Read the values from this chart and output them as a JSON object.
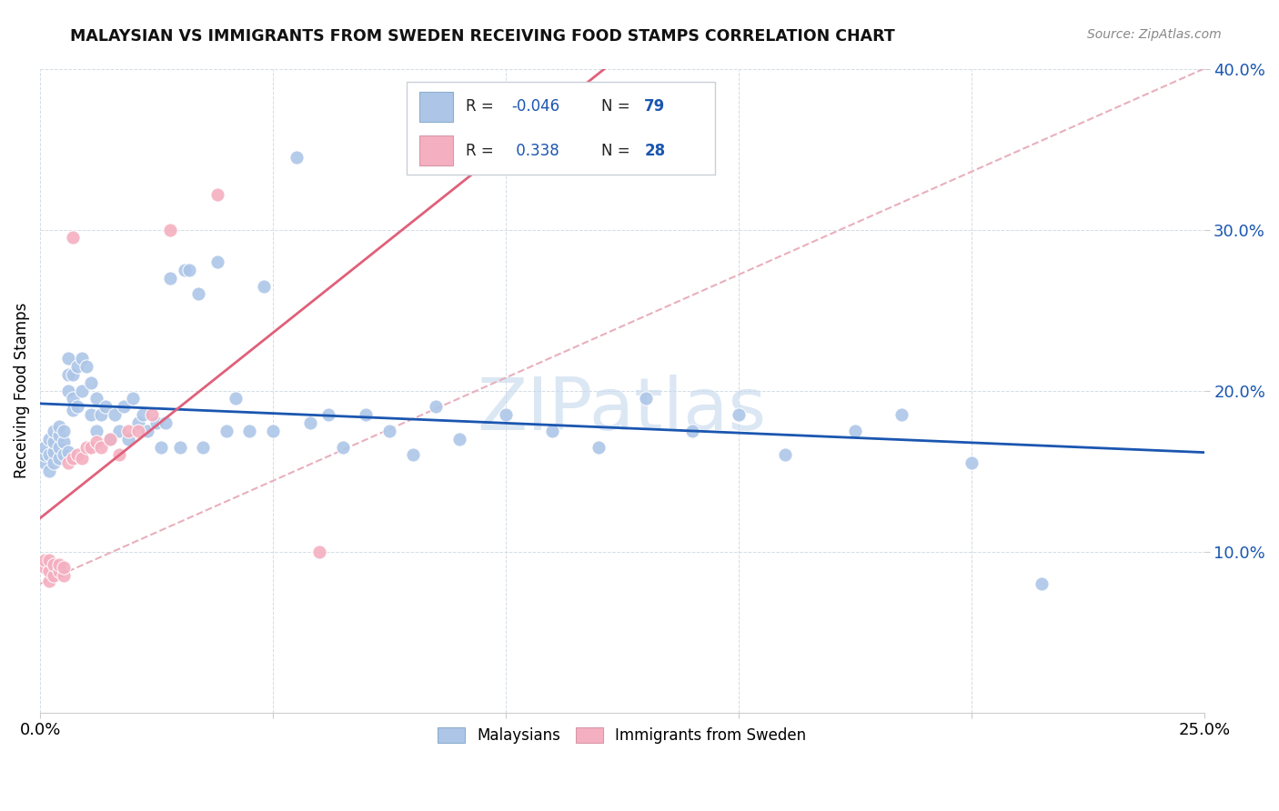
{
  "title": "MALAYSIAN VS IMMIGRANTS FROM SWEDEN RECEIVING FOOD STAMPS CORRELATION CHART",
  "source": "Source: ZipAtlas.com",
  "ylabel": "Receiving Food Stamps",
  "ytick_vals": [
    0.1,
    0.2,
    0.3,
    0.4
  ],
  "ytick_labels": [
    "10.0%",
    "20.0%",
    "30.0%",
    "40.0%"
  ],
  "xtick_vals": [
    0.0,
    0.25
  ],
  "xtick_labels": [
    "0.0%",
    "25.0%"
  ],
  "legend_labels": [
    "Malaysians",
    "Immigrants from Sweden"
  ],
  "r_malaysian": "-0.046",
  "n_malaysian": "79",
  "r_sweden": "0.338",
  "n_sweden": "28",
  "dot_color_malaysian": "#adc6e8",
  "dot_color_sweden": "#f4afc0",
  "line_color_malaysian": "#1a56b0",
  "line_color_sweden": "#e0607a",
  "line_color_diagonal": "#e8b0bc",
  "watermark": "ZIPatlas",
  "xlim": [
    0,
    0.25
  ],
  "ylim": [
    0,
    0.4
  ],
  "malaysian_x": [
    0.001,
    0.001,
    0.001,
    0.002,
    0.002,
    0.002,
    0.003,
    0.003,
    0.003,
    0.003,
    0.004,
    0.004,
    0.004,
    0.004,
    0.005,
    0.005,
    0.005,
    0.006,
    0.006,
    0.006,
    0.006,
    0.007,
    0.007,
    0.007,
    0.008,
    0.008,
    0.009,
    0.009,
    0.01,
    0.011,
    0.011,
    0.012,
    0.012,
    0.013,
    0.014,
    0.015,
    0.016,
    0.017,
    0.018,
    0.019,
    0.02,
    0.021,
    0.022,
    0.023,
    0.025,
    0.026,
    0.027,
    0.028,
    0.03,
    0.031,
    0.032,
    0.034,
    0.035,
    0.038,
    0.04,
    0.042,
    0.045,
    0.048,
    0.05,
    0.055,
    0.058,
    0.062,
    0.065,
    0.07,
    0.075,
    0.08,
    0.085,
    0.09,
    0.1,
    0.11,
    0.12,
    0.13,
    0.14,
    0.15,
    0.16,
    0.175,
    0.185,
    0.2,
    0.215
  ],
  "malaysian_y": [
    0.155,
    0.16,
    0.165,
    0.15,
    0.16,
    0.17,
    0.155,
    0.162,
    0.168,
    0.175,
    0.158,
    0.165,
    0.172,
    0.178,
    0.16,
    0.168,
    0.175,
    0.162,
    0.2,
    0.21,
    0.22,
    0.188,
    0.195,
    0.21,
    0.19,
    0.215,
    0.2,
    0.22,
    0.215,
    0.205,
    0.185,
    0.195,
    0.175,
    0.185,
    0.19,
    0.17,
    0.185,
    0.175,
    0.19,
    0.17,
    0.195,
    0.18,
    0.185,
    0.175,
    0.18,
    0.165,
    0.18,
    0.27,
    0.165,
    0.275,
    0.275,
    0.26,
    0.165,
    0.28,
    0.175,
    0.195,
    0.175,
    0.265,
    0.175,
    0.345,
    0.18,
    0.185,
    0.165,
    0.185,
    0.175,
    0.16,
    0.19,
    0.17,
    0.185,
    0.175,
    0.165,
    0.195,
    0.175,
    0.185,
    0.16,
    0.175,
    0.185,
    0.155,
    0.08
  ],
  "sweden_x": [
    0.001,
    0.001,
    0.002,
    0.002,
    0.002,
    0.003,
    0.003,
    0.004,
    0.004,
    0.005,
    0.005,
    0.006,
    0.007,
    0.007,
    0.008,
    0.009,
    0.01,
    0.011,
    0.012,
    0.013,
    0.015,
    0.017,
    0.019,
    0.021,
    0.024,
    0.028,
    0.038,
    0.06
  ],
  "sweden_y": [
    0.09,
    0.095,
    0.082,
    0.088,
    0.095,
    0.085,
    0.092,
    0.088,
    0.092,
    0.085,
    0.09,
    0.155,
    0.158,
    0.295,
    0.16,
    0.158,
    0.165,
    0.165,
    0.168,
    0.165,
    0.17,
    0.16,
    0.175,
    0.175,
    0.185,
    0.3,
    0.322,
    0.1
  ]
}
